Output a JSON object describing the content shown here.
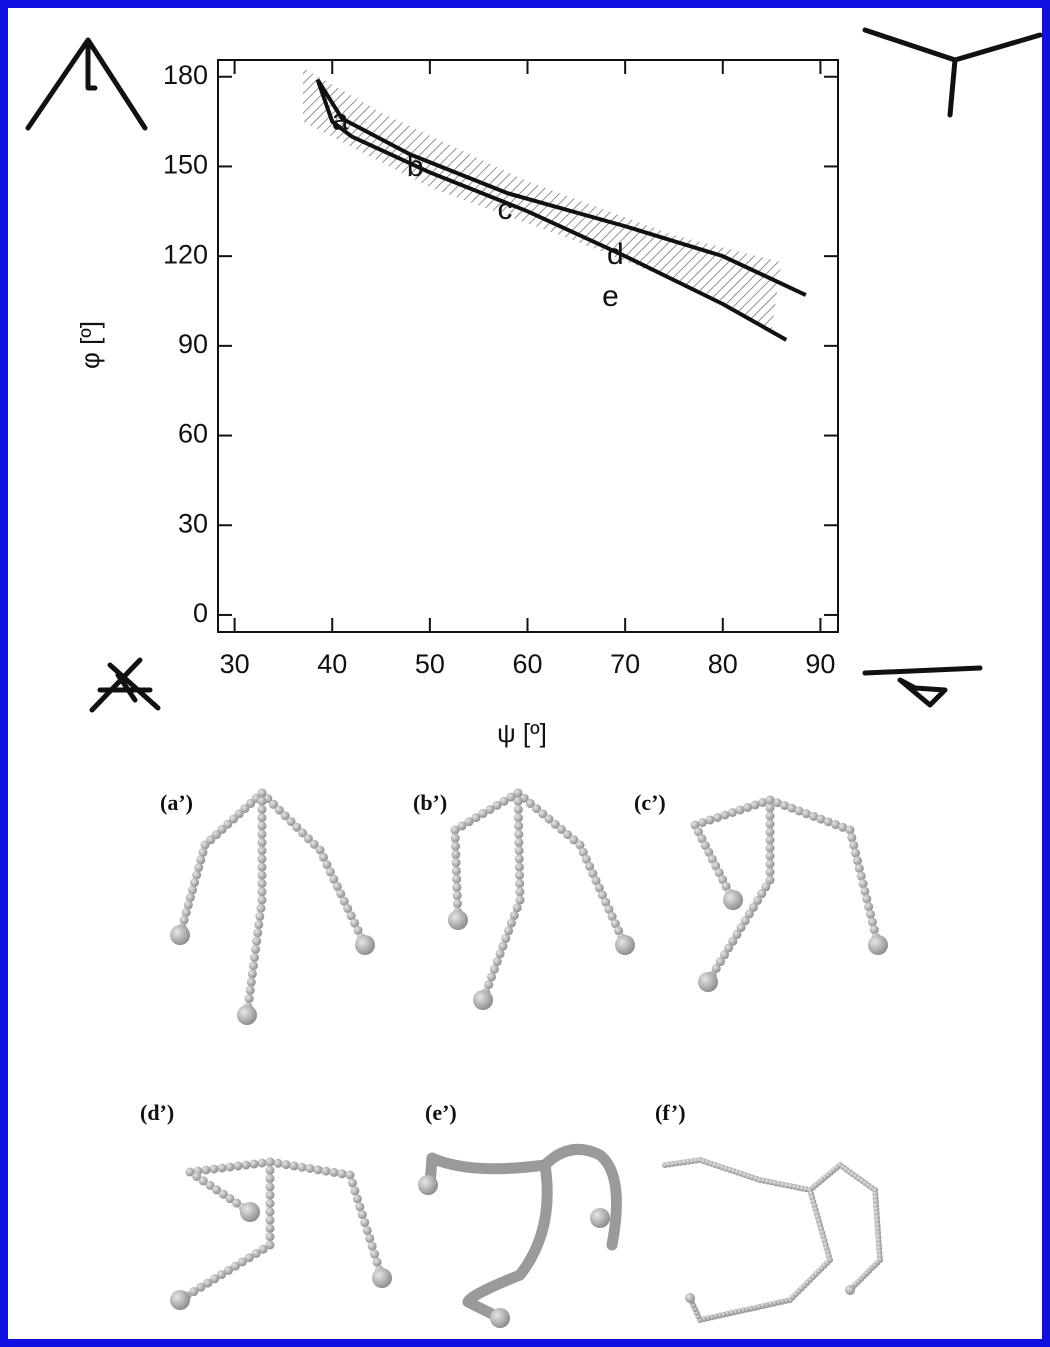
{
  "chart_data": {
    "type": "line",
    "xlabel": "ψ [º]",
    "ylabel": "φ [º]",
    "xlim": [
      28.3,
      91.8
    ],
    "ylim": [
      -5.7,
      185.6
    ],
    "xticks": [
      30,
      40,
      50,
      60,
      70,
      80,
      90
    ],
    "yticks": [
      0,
      30,
      60,
      90,
      120,
      150,
      180
    ],
    "series": [
      {
        "color": "#111111",
        "x": [
          38.5,
          41,
          48,
          58,
          70,
          80,
          88.5
        ],
        "values": [
          179,
          166,
          154,
          141,
          130,
          120,
          107
        ]
      },
      {
        "color": "#111111",
        "x": [
          38.5,
          40,
          42,
          50,
          60,
          70,
          80,
          86.5
        ],
        "values": [
          179,
          165,
          160,
          148,
          135,
          120,
          104,
          92
        ]
      }
    ],
    "region": {
      "color": "#777777",
      "x": [
        37,
        45,
        60,
        75,
        86,
        85,
        80,
        65,
        50,
        37
      ],
      "values": [
        183,
        168,
        145,
        127,
        118,
        95,
        105,
        125,
        143,
        165
      ]
    },
    "annotations": [
      {
        "text": "a",
        "x": 40.8,
        "y": 165
      },
      {
        "text": "b",
        "x": 48.5,
        "y": 149.5
      },
      {
        "text": "c",
        "x": 57.7,
        "y": 135
      },
      {
        "text": "d",
        "x": 69,
        "y": 120
      },
      {
        "text": "e",
        "x": 68.5,
        "y": 106
      }
    ]
  },
  "panels": [
    "(a’)",
    "(b’)",
    "(c’)",
    "(d’)",
    "(e’)",
    "(f’)"
  ]
}
